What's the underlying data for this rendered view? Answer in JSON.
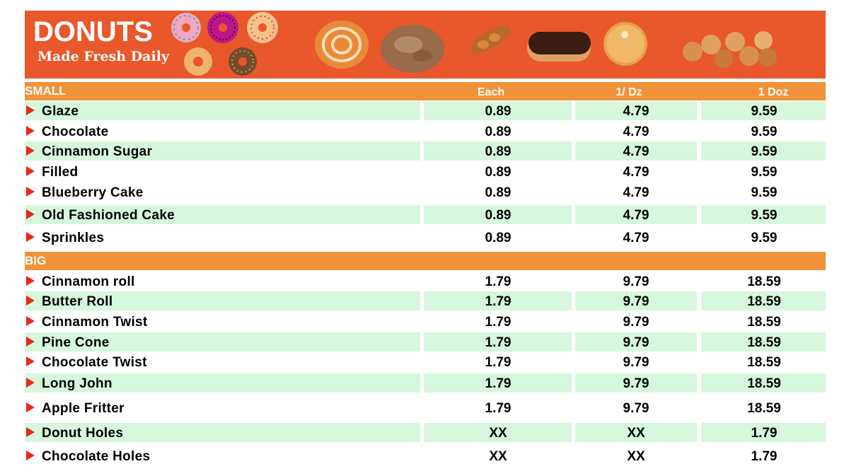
{
  "banner": {
    "title": "DONUTS",
    "subtitle": "Made Fresh Daily",
    "background_color": "#e8582a"
  },
  "header_color": "#f0923a",
  "row_highlight_color": "#d6f7dc",
  "arrow_color": "#e8281a",
  "columns": [
    "Each",
    "1/ Dz",
    "1 Doz"
  ],
  "sections": {
    "small": {
      "label": "SMALL",
      "items": [
        {
          "name": "Glaze",
          "each": "0.89",
          "half": "4.79",
          "dozen": "9.59"
        },
        {
          "name": "Chocolate",
          "each": "0.89",
          "half": "4.79",
          "dozen": "9.59"
        },
        {
          "name": "Cinnamon Sugar",
          "each": "0.89",
          "half": "4.79",
          "dozen": "9.59"
        },
        {
          "name": "Filled",
          "each": "0.89",
          "half": "4.79",
          "dozen": "9.59"
        },
        {
          "name": "Blueberry Cake",
          "each": "0.89",
          "half": "4.79",
          "dozen": "9.59"
        },
        {
          "name": "Old Fashioned Cake",
          "each": "0.89",
          "half": "4.79",
          "dozen": "9.59"
        },
        {
          "name": "Sprinkles",
          "each": "0.89",
          "half": "4.79",
          "dozen": "9.59"
        }
      ]
    },
    "big": {
      "label": "BIG",
      "items": [
        {
          "name": "Cinnamon roll",
          "each": "1.79",
          "half": "9.79",
          "dozen": "18.59"
        },
        {
          "name": "Butter Roll",
          "each": "1.79",
          "half": "9.79",
          "dozen": "18.59"
        },
        {
          "name": "Cinnamon Twist",
          "each": "1.79",
          "half": "9.79",
          "dozen": "18.59"
        },
        {
          "name": "Pine Cone",
          "each": "1.79",
          "half": "9.79",
          "dozen": "18.59"
        },
        {
          "name": "Chocolate Twist",
          "each": "1.79",
          "half": "9.79",
          "dozen": "18.59"
        },
        {
          "name": "Long John",
          "each": "1.79",
          "half": "9.79",
          "dozen": "18.59"
        },
        {
          "name": "Apple Fritter",
          "each": "1.79",
          "half": "9.79",
          "dozen": "18.59"
        },
        {
          "name": "Donut Holes",
          "each": "XX",
          "half": "XX",
          "dozen": "1.79"
        },
        {
          "name": "Chocolate Holes",
          "each": "XX",
          "half": "XX",
          "dozen": "1.79"
        }
      ]
    }
  }
}
